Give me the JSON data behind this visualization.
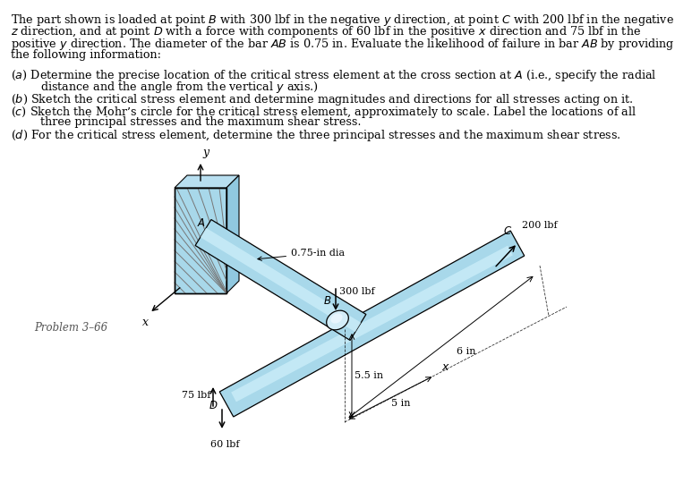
{
  "bg_color": "#ffffff",
  "light_blue": "#a8d8ea",
  "light_blue2": "#c8ecf8",
  "mid_blue": "#7ec8e3",
  "line_color": "#000000",
  "gray_hatch": "#777777",
  "problem_label": "Problem 3–66",
  "text_fontsize": 9.2,
  "diagram_lines": {
    "p1_l1": "The part shown is loaded at point $B$ with 300 lbf in the negative $y$ direction, at point $C$ with 200 lbf in the negative",
    "p1_l2": "$z$ direction, and at point $D$ with a force with components of 60 lbf in the positive $x$ direction and 75 lbf in the",
    "p1_l3": "positive $y$ direction. The diameter of the bar $AB$ is 0.75 in. Evaluate the likelihood of failure in bar $AB$ by providing",
    "p1_l4": "the following information:",
    "a_l1": "($a$) Determine the precise location of the critical stress element at the cross section at $A$ (i.e., specify the radial",
    "a_l2": "distance and the angle from the vertical $y$ axis.)",
    "b_l1": "($b$) Sketch the critical stress element and determine magnitudes and directions for all stresses acting on it.",
    "c_l1": "($c$) Sketch the Mohr’s circle for the critical stress element, approximately to scale. Label the locations of all",
    "c_l2": "three principal stresses and the maximum shear stress.",
    "d_l1": "($d$) For the critical stress element, determine the three principal stresses and the maximum shear stress."
  }
}
